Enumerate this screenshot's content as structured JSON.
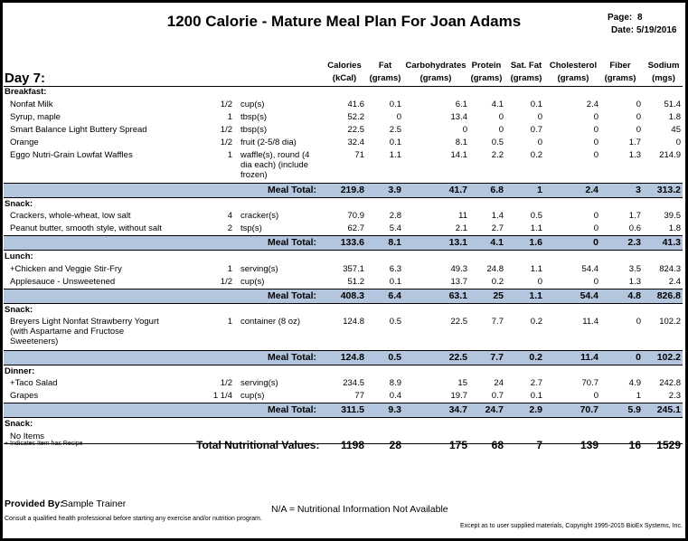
{
  "title": "1200 Calorie - Mature Meal Plan For Joan Adams",
  "page_label": "Page:",
  "page_number": "8",
  "date_label": "Date:",
  "date": "5/19/2016",
  "day": "Day 7:",
  "headers": [
    {
      "top": "Calories",
      "bottom": "(kCal)"
    },
    {
      "top": "Fat",
      "bottom": "(grams)"
    },
    {
      "top": "Carbohydrates",
      "bottom": "(grams)"
    },
    {
      "top": "Protein",
      "bottom": "(grams)"
    },
    {
      "top": "Sat. Fat",
      "bottom": "(grams)"
    },
    {
      "top": "Cholesterol",
      "bottom": "(grams)"
    },
    {
      "top": "Fiber",
      "bottom": "(grams)"
    },
    {
      "top": "Sodium",
      "bottom": "(mgs)"
    }
  ],
  "meal_total_label": "Meal Total:",
  "meals": [
    {
      "name": "Breakfast:",
      "items": [
        {
          "name": "Nonfat Milk",
          "qty": "1/2",
          "unit": "cup(s)",
          "values": [
            "41.6",
            "0.1",
            "6.1",
            "4.1",
            "0.1",
            "2.4",
            "0",
            "51.4"
          ]
        },
        {
          "name": "Syrup, maple",
          "qty": "1",
          "unit": "tbsp(s)",
          "values": [
            "52.2",
            "0",
            "13.4",
            "0",
            "0",
            "0",
            "0",
            "1.8"
          ]
        },
        {
          "name": "Smart Balance Light Buttery Spread",
          "qty": "1/2",
          "unit": "tbsp(s)",
          "values": [
            "22.5",
            "2.5",
            "0",
            "0",
            "0.7",
            "0",
            "0",
            "45"
          ]
        },
        {
          "name": "Orange",
          "qty": "1/2",
          "unit": "fruit (2-5/8 dia)",
          "values": [
            "32.4",
            "0.1",
            "8.1",
            "0.5",
            "0",
            "0",
            "1.7",
            "0"
          ]
        },
        {
          "name": "Eggo Nutri-Grain Lowfat Waffles",
          "qty": "1",
          "unit": "waffle(s), round (4\ndia each) (include\nfrozen)",
          "values": [
            "71",
            "1.1",
            "14.1",
            "2.2",
            "0.2",
            "0",
            "1.3",
            "214.9"
          ]
        }
      ],
      "total": [
        "219.8",
        "3.9",
        "41.7",
        "6.8",
        "1",
        "2.4",
        "3",
        "313.2"
      ]
    },
    {
      "name": "Snack:",
      "items": [
        {
          "name": "Crackers, whole-wheat, low salt",
          "qty": "4",
          "unit": "cracker(s)",
          "values": [
            "70.9",
            "2.8",
            "11",
            "1.4",
            "0.5",
            "0",
            "1.7",
            "39.5"
          ]
        },
        {
          "name": "Peanut butter, smooth style, without salt",
          "qty": "2",
          "unit": "tsp(s)",
          "values": [
            "62.7",
            "5.4",
            "2.1",
            "2.7",
            "1.1",
            "0",
            "0.6",
            "1.8"
          ]
        }
      ],
      "total": [
        "133.6",
        "8.1",
        "13.1",
        "4.1",
        "1.6",
        "0",
        "2.3",
        "41.3"
      ]
    },
    {
      "name": "Lunch:",
      "items": [
        {
          "name": "+Chicken and Veggie Stir-Fry",
          "qty": "1",
          "unit": "serving(s)",
          "values": [
            "357.1",
            "6.3",
            "49.3",
            "24.8",
            "1.1",
            "54.4",
            "3.5",
            "824.3"
          ]
        },
        {
          "name": "Applesauce - Unsweetened",
          "qty": "1/2",
          "unit": "cup(s)",
          "values": [
            "51.2",
            "0.1",
            "13.7",
            "0.2",
            "0",
            "0",
            "1.3",
            "2.4"
          ]
        }
      ],
      "total": [
        "408.3",
        "6.4",
        "63.1",
        "25",
        "1.1",
        "54.4",
        "4.8",
        "826.8"
      ]
    },
    {
      "name": "Snack:",
      "items": [
        {
          "name": "Breyers Light Nonfat Strawberry Yogurt\n(with Aspartame and Fructose\nSweeteners)",
          "qty": "1",
          "unit": "container (8 oz)",
          "values": [
            "124.8",
            "0.5",
            "22.5",
            "7.7",
            "0.2",
            "11.4",
            "0",
            "102.2"
          ]
        }
      ],
      "total": [
        "124.8",
        "0.5",
        "22.5",
        "7.7",
        "0.2",
        "11.4",
        "0",
        "102.2"
      ]
    },
    {
      "name": "Dinner:",
      "items": [
        {
          "name": "+Taco Salad",
          "qty": "1/2",
          "unit": "serving(s)",
          "values": [
            "234.5",
            "8.9",
            "15",
            "24",
            "2.7",
            "70.7",
            "4.9",
            "242.8"
          ]
        },
        {
          "name": "Grapes",
          "qty": "1 1/4",
          "unit": "cup(s)",
          "values": [
            "77",
            "0.4",
            "19.7",
            "0.7",
            "0.1",
            "0",
            "1",
            "2.3"
          ]
        }
      ],
      "total": [
        "311.5",
        "9.3",
        "34.7",
        "24.7",
        "2.9",
        "70.7",
        "5.9",
        "245.1"
      ]
    },
    {
      "name": "Snack:",
      "no_items": "No Items"
    }
  ],
  "recipe_note": "+ Indicates Item has Recipe",
  "grand_total_label": "Total Nutritional Values:",
  "grand_total": [
    "1198",
    "28",
    "175",
    "68",
    "7",
    "139",
    "16",
    "1529"
  ],
  "provided_by_label": "Provided By:",
  "provided_by": "Sample Trainer",
  "na_note": "N/A = Nutritional Information Not Available",
  "disclaimer": "Consult a qualified health professional before starting any exercise and/or nutrition program.",
  "copyright": "Except as to user supplied materials, Copyright 1995-2015 BioEx Systems, Inc."
}
